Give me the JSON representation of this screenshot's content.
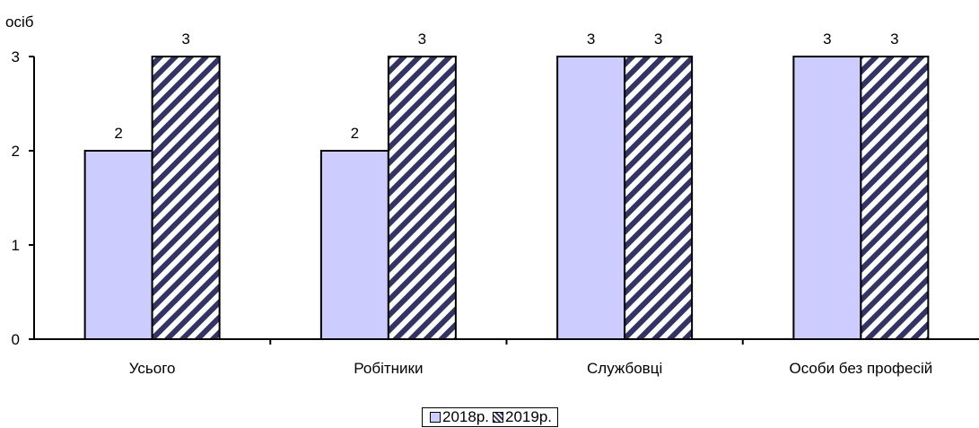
{
  "chart_data": {
    "type": "bar",
    "title": "",
    "ylabel": "осіб",
    "xlabel": "",
    "categories": [
      "Усього",
      "Робітники",
      "Службовці",
      "Особи без професій"
    ],
    "series": [
      {
        "name": "2018р.",
        "values": [
          2,
          2,
          3,
          3
        ],
        "color": "#ccccff"
      },
      {
        "name": "2019р.",
        "values": [
          3,
          3,
          3,
          3
        ],
        "color": "#333366",
        "pattern": "diagonal-hatch"
      }
    ],
    "data_labels": [
      [
        "2",
        "2",
        "3",
        "3"
      ],
      [
        "3",
        "3",
        "3",
        "3"
      ]
    ],
    "ylim": [
      0,
      3
    ],
    "yticks": [
      0,
      1,
      2,
      3
    ],
    "grid": false,
    "legend": "bottom-center"
  }
}
